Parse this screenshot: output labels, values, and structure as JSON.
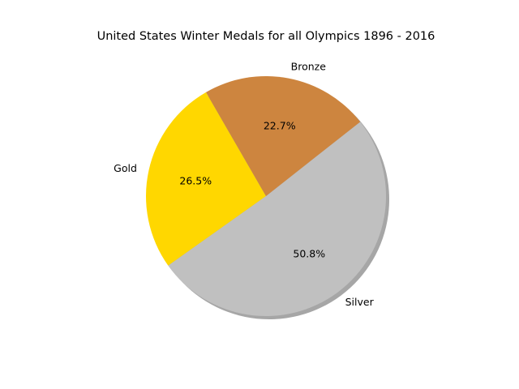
{
  "chart_data": {
    "type": "pie",
    "title": "United States Winter Medals for all Olympics 1896 - 2016",
    "shadow": true,
    "slices": [
      {
        "label": "Gold",
        "percent": 26.5,
        "pct_label": "26.5%",
        "color": "#FFD700"
      },
      {
        "label": "Silver",
        "percent": 50.8,
        "pct_label": "50.8%",
        "color": "#C0C0C0"
      },
      {
        "label": "Bronze",
        "percent": 22.7,
        "pct_label": "22.7%",
        "color": "#CD853F"
      }
    ]
  }
}
